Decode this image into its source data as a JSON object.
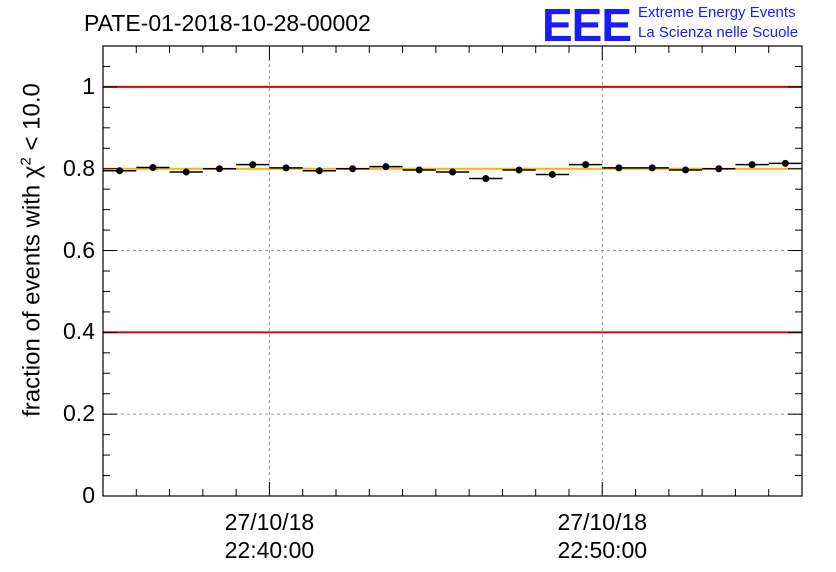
{
  "header": {
    "title": "PATE-01-2018-10-28-00002",
    "logo_text": "EEE",
    "logo_line1": "Extreme Energy Events",
    "logo_line2": "La Scienza nelle Scuole"
  },
  "colors": {
    "reference_line": "#dd0000",
    "mean_line": "#ffb400",
    "logo": "#1a1aff",
    "grid": "#999999"
  },
  "chart_data": {
    "type": "scatter",
    "title": "PATE-01-2018-10-28-00002",
    "xlabel": "",
    "ylabel_main": "fraction of events with χ",
    "ylabel_sup": "2",
    "ylabel_tail": " < 10.0",
    "ylim": [
      0,
      1.1
    ],
    "yticks": [
      0,
      0.2,
      0.4,
      0.6,
      0.8,
      1
    ],
    "ytick_labels": [
      "0",
      "0.2",
      "0.4",
      "0.6",
      "0.8",
      "1"
    ],
    "xlim_minutes": [
      0,
      1260
    ],
    "xticks": [
      {
        "minute": 300,
        "date": "27/10/18",
        "time": "22:40:00"
      },
      {
        "minute": 900,
        "date": "27/10/18",
        "time": "22:50:00"
      }
    ],
    "bin_width_minutes": 60,
    "x_minutes": [
      30,
      90,
      150,
      210,
      270,
      330,
      390,
      450,
      510,
      570,
      630,
      690,
      750,
      810,
      870,
      930,
      990,
      1050,
      1110,
      1170,
      1230
    ],
    "values": [
      0.795,
      0.803,
      0.792,
      0.8,
      0.81,
      0.802,
      0.795,
      0.8,
      0.805,
      0.797,
      0.792,
      0.776,
      0.797,
      0.786,
      0.81,
      0.802,
      0.802,
      0.797,
      0.8,
      0.81,
      0.813
    ],
    "reference_lines": [
      1.0,
      0.4
    ],
    "mean_line": 0.8,
    "grid": true
  }
}
